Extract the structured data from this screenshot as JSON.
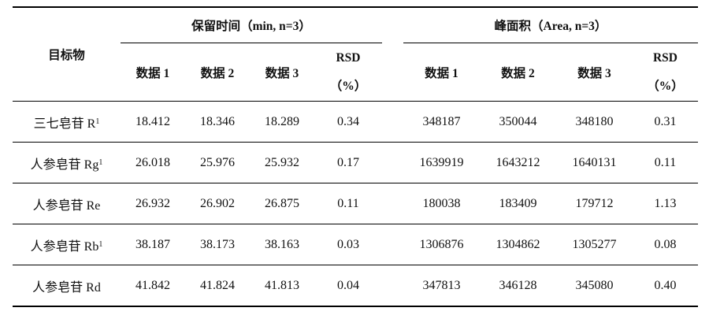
{
  "table": {
    "row_header": "目标物",
    "group_retention": "保留时间（min, n=3）",
    "group_area": "峰面积（Area, n=3）",
    "sub_headers": [
      "数据 1",
      "数据 2",
      "数据 3"
    ],
    "rsd_label": "RSD",
    "rsd_unit": "（%）",
    "rows": [
      {
        "name": "三七皂苷 R",
        "sub": "1",
        "rt": [
          "18.412",
          "18.346",
          "18.289"
        ],
        "rt_rsd": "0.34",
        "area": [
          "348187",
          "350044",
          "348180"
        ],
        "area_rsd": "0.31"
      },
      {
        "name": "人参皂苷 Rg",
        "sub": "1",
        "rt": [
          "26.018",
          "25.976",
          "25.932"
        ],
        "rt_rsd": "0.17",
        "area": [
          "1639919",
          "1643212",
          "1640131"
        ],
        "area_rsd": "0.11"
      },
      {
        "name": "人参皂苷 Re",
        "sub": "",
        "rt": [
          "26.932",
          "26.902",
          "26.875"
        ],
        "rt_rsd": "0.11",
        "area": [
          "180038",
          "183409",
          "179712"
        ],
        "area_rsd": "1.13"
      },
      {
        "name": "人参皂苷 Rb",
        "sub": "1",
        "rt": [
          "38.187",
          "38.173",
          "38.163"
        ],
        "rt_rsd": "0.03",
        "area": [
          "1306876",
          "1304862",
          "1305277"
        ],
        "area_rsd": "0.08"
      },
      {
        "name": "人参皂苷 Rd",
        "sub": "",
        "rt": [
          "41.842",
          "41.824",
          "41.813"
        ],
        "rt_rsd": "0.04",
        "area": [
          "347813",
          "346128",
          "345080"
        ],
        "area_rsd": "0.40"
      }
    ]
  }
}
